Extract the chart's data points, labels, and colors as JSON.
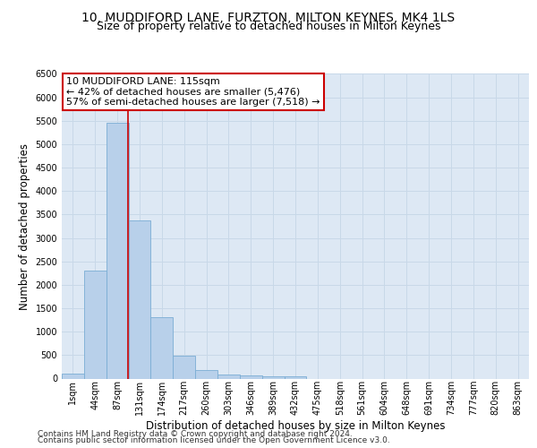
{
  "title_line1": "10, MUDDIFORD LANE, FURZTON, MILTON KEYNES, MK4 1LS",
  "title_line2": "Size of property relative to detached houses in Milton Keynes",
  "xlabel": "Distribution of detached houses by size in Milton Keynes",
  "ylabel": "Number of detached properties",
  "bin_labels": [
    "1sqm",
    "44sqm",
    "87sqm",
    "131sqm",
    "174sqm",
    "217sqm",
    "260sqm",
    "303sqm",
    "346sqm",
    "389sqm",
    "432sqm",
    "475sqm",
    "518sqm",
    "561sqm",
    "604sqm",
    "648sqm",
    "691sqm",
    "734sqm",
    "777sqm",
    "820sqm",
    "863sqm"
  ],
  "bar_values": [
    100,
    2300,
    5450,
    3380,
    1310,
    480,
    190,
    80,
    60,
    50,
    50,
    0,
    0,
    0,
    0,
    0,
    0,
    0,
    0,
    0,
    0
  ],
  "bar_color": "#b8d0ea",
  "bar_edge_color": "#7aadd4",
  "vline_color": "#cc0000",
  "vline_x": 2.48,
  "annotation_text": "10 MUDDIFORD LANE: 115sqm\n← 42% of detached houses are smaller (5,476)\n57% of semi-detached houses are larger (7,518) →",
  "annotation_box_color": "white",
  "annotation_box_edge": "#cc0000",
  "ylim": [
    0,
    6500
  ],
  "yticks": [
    0,
    500,
    1000,
    1500,
    2000,
    2500,
    3000,
    3500,
    4000,
    4500,
    5000,
    5500,
    6000,
    6500
  ],
  "grid_color": "#c8d8e8",
  "bg_color": "#dde8f4",
  "footer_line1": "Contains HM Land Registry data © Crown copyright and database right 2024.",
  "footer_line2": "Contains public sector information licensed under the Open Government Licence v3.0.",
  "title_fontsize": 10,
  "subtitle_fontsize": 9,
  "axis_label_fontsize": 8.5,
  "tick_fontsize": 7,
  "annotation_fontsize": 8,
  "footer_fontsize": 6.5
}
